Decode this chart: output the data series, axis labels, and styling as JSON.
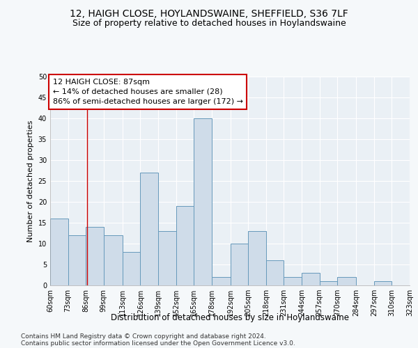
{
  "title": "12, HAIGH CLOSE, HOYLANDSWAINE, SHEFFIELD, S36 7LF",
  "subtitle": "Size of property relative to detached houses in Hoylandswaine",
  "xlabel": "Distribution of detached houses by size in Hoylandswaine",
  "ylabel": "Number of detached properties",
  "bins": [
    60,
    73,
    86,
    99,
    113,
    126,
    139,
    152,
    165,
    178,
    192,
    205,
    218,
    231,
    244,
    257,
    270,
    284,
    297,
    310,
    323
  ],
  "counts": [
    16,
    12,
    14,
    12,
    8,
    27,
    13,
    19,
    40,
    2,
    10,
    13,
    6,
    2,
    3,
    1,
    2,
    0,
    1,
    0
  ],
  "bar_facecolor": "#cfdce9",
  "bar_edgecolor": "#6699bb",
  "property_line_x": 87,
  "property_line_color": "#cc0000",
  "annotation_line1": "12 HAIGH CLOSE: 87sqm",
  "annotation_line2": "← 14% of detached houses are smaller (28)",
  "annotation_line3": "86% of semi-detached houses are larger (172) →",
  "annotation_box_color": "#cc0000",
  "ylim": [
    0,
    50
  ],
  "yticks": [
    0,
    5,
    10,
    15,
    20,
    25,
    30,
    35,
    40,
    45,
    50
  ],
  "footer1": "Contains HM Land Registry data © Crown copyright and database right 2024.",
  "footer2": "Contains public sector information licensed under the Open Government Licence v3.0.",
  "bg_color": "#f5f8fa",
  "plot_bg_color": "#eaf0f5",
  "grid_color": "#ffffff",
  "title_fontsize": 10,
  "subtitle_fontsize": 9,
  "xlabel_fontsize": 8.5,
  "ylabel_fontsize": 8,
  "tick_fontsize": 7,
  "annotation_fontsize": 8,
  "footer_fontsize": 6.5
}
